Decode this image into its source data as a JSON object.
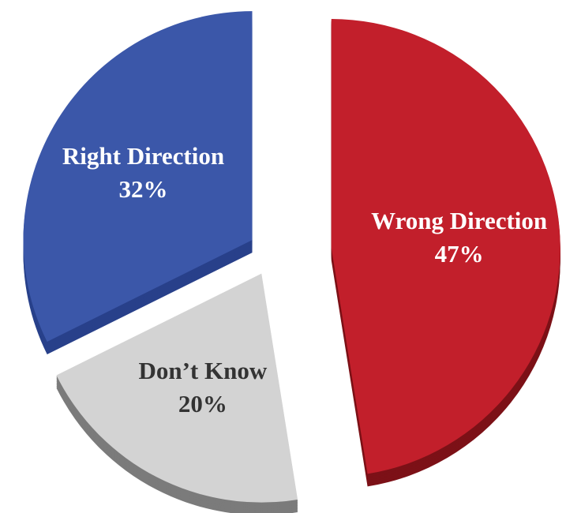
{
  "chart_data": {
    "type": "pie",
    "categories": [
      "Wrong Direction",
      "Don’t Know",
      "Right Direction"
    ],
    "values": [
      47,
      20,
      32
    ],
    "value_labels": [
      "47%",
      "20%",
      "32%"
    ],
    "colors": [
      "#c21f2b",
      "#d3d3d3",
      "#3b57a9"
    ]
  }
}
